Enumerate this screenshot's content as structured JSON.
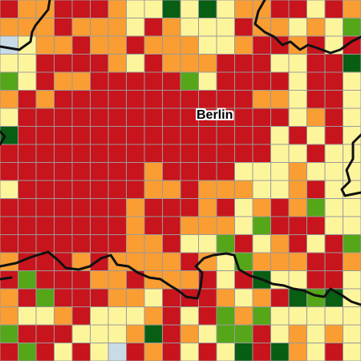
{
  "map": {
    "city_label": "Berlin",
    "legend_colors": {
      "0": "#c8141c",
      "1": "#fa9d32",
      "2": "#fdf59c",
      "3": "#55a619",
      "4": "#085e13",
      "5": "#c9dbe6"
    },
    "grid_color": "#9a9a9a",
    "boundary_color": "#111111",
    "cells": [
      "01100012242421100201",
      "11101112012220112123",
      "52110110111221001020",
      "22000012011100022004",
      "32011000003200002002",
      "10100000000000112002",
      "20000000000000002102",
      "40000000000000020202",
      "00000000000000022022",
      "00000000100002221222",
      "20000000110111221022",
      "00000001000102101322",
      "00000001001112300022",
      "00000001102230210203",
      "10001011110123111001",
      "03000110111020422002",
      "10300011200012104342",
      "12210222102031322222",
      "30002221401233021212",
      "03020250102024041202"
    ]
  }
}
